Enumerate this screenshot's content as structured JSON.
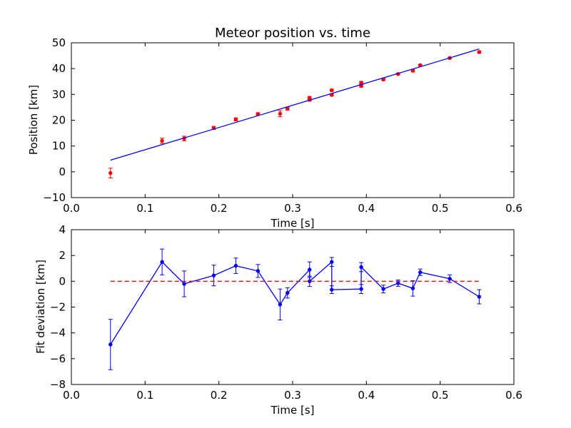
{
  "chart_data": [
    {
      "type": "scatter",
      "title": "Meteor position vs. time",
      "xlabel": "Time [s]",
      "ylabel": "Position [km]",
      "xlim": [
        0.0,
        0.6
      ],
      "ylim": [
        -10,
        50
      ],
      "x_ticks": [
        "0.0",
        "0.1",
        "0.2",
        "0.3",
        "0.4",
        "0.5",
        "0.6"
      ],
      "y_ticks": [
        "−10",
        "0",
        "10",
        "20",
        "30",
        "40",
        "50"
      ],
      "grid": false,
      "colors": {
        "points": "#ff0000",
        "fit": "#0000ff"
      },
      "series": [
        {
          "kind": "points-with-errorbars",
          "x": [
            0.053,
            0.123,
            0.153,
            0.193,
            0.223,
            0.253,
            0.283,
            0.293,
            0.323,
            0.323,
            0.353,
            0.353,
            0.393,
            0.393,
            0.423,
            0.443,
            0.463,
            0.473,
            0.513,
            0.553
          ],
          "y": [
            -0.5,
            12.0,
            12.9,
            17.0,
            20.3,
            22.4,
            22.5,
            24.5,
            27.9,
            28.6,
            29.8,
            31.6,
            33.3,
            34.5,
            35.8,
            37.9,
            39.2,
            41.3,
            44.1,
            46.4
          ],
          "err": [
            1.9,
            1.0,
            0.9,
            0.6,
            0.6,
            0.5,
            1.2,
            0.6,
            0.5,
            0.6,
            0.4,
            0.4,
            0.5,
            0.5,
            0.4,
            0.3,
            0.5,
            0.3,
            0.3,
            0.4
          ]
        },
        {
          "kind": "fit-line",
          "x": [
            0.053,
            0.553
          ],
          "y": [
            4.5,
            47.6
          ]
        }
      ]
    },
    {
      "type": "line",
      "title": "",
      "xlabel": "Time [s]",
      "ylabel": "Fit deviation [km]",
      "xlim": [
        0.0,
        0.6
      ],
      "ylim": [
        -8,
        4
      ],
      "x_ticks": [
        "0.0",
        "0.1",
        "0.2",
        "0.3",
        "0.4",
        "0.5",
        "0.6"
      ],
      "y_ticks": [
        "−8",
        "−6",
        "−4",
        "−2",
        "0",
        "2",
        "4"
      ],
      "grid": false,
      "colors": {
        "line": "#0000ff",
        "zero": "#ff0000"
      },
      "series": [
        {
          "kind": "line-with-errorbars",
          "x": [
            0.053,
            0.123,
            0.153,
            0.193,
            0.223,
            0.253,
            0.283,
            0.293,
            0.323,
            0.323,
            0.353,
            0.353,
            0.393,
            0.393,
            0.423,
            0.443,
            0.463,
            0.473,
            0.513,
            0.553
          ],
          "y": [
            -4.9,
            1.5,
            -0.2,
            0.45,
            1.2,
            0.8,
            -1.8,
            -0.9,
            0.9,
            0.0,
            1.5,
            -0.65,
            -0.6,
            1.1,
            -0.6,
            -0.15,
            -0.55,
            0.7,
            0.2,
            -1.2
          ],
          "err": [
            1.95,
            1.0,
            1.0,
            0.8,
            0.6,
            0.5,
            1.2,
            0.4,
            0.6,
            0.4,
            0.35,
            0.3,
            0.35,
            0.35,
            0.3,
            0.25,
            0.6,
            0.25,
            0.3,
            0.55
          ]
        },
        {
          "kind": "zero-reference",
          "x": [
            0.053,
            0.553
          ],
          "y": [
            0,
            0
          ]
        }
      ]
    }
  ]
}
